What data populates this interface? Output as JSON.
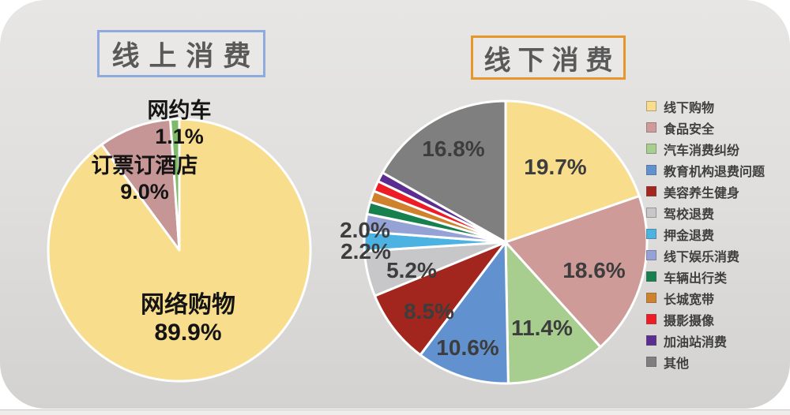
{
  "page": {
    "background_color": "#ffffff",
    "card_color": "#dededc"
  },
  "online_section": {
    "title": "线上消费",
    "title_text_color": "#595959",
    "title_border_color": "#8faadc"
  },
  "offline_section": {
    "title": "线下消费",
    "title_text_color": "#595959",
    "title_border_color": "#e6962a"
  },
  "chart_data": [
    {
      "type": "pie",
      "title": "线上消费",
      "start_angle_deg": 0,
      "direction": "clockwise",
      "slices": [
        {
          "name": "网络购物",
          "value": 89.9,
          "label": "89.9%",
          "color": "#f7dd8c"
        },
        {
          "name": "订票订酒店",
          "value": 9.0,
          "label": "9.0%",
          "color": "#c59695"
        },
        {
          "name": "网约车",
          "value": 1.1,
          "label": "1.1%",
          "color": "#7eba67"
        }
      ]
    },
    {
      "type": "pie",
      "title": "线下消费",
      "start_angle_deg": 0,
      "direction": "clockwise",
      "legend_position": "right",
      "slices": [
        {
          "name": "线下购物",
          "value": 19.7,
          "label": "19.7%",
          "color": "#f7dd8c"
        },
        {
          "name": "食品安全",
          "value": 18.6,
          "label": "18.6%",
          "color": "#cf9b99"
        },
        {
          "name": "汽车消费纠纷",
          "value": 11.4,
          "label": "11.4%",
          "color": "#a7cd8f"
        },
        {
          "name": "教育机构退费问题",
          "value": 10.6,
          "label": "10.6%",
          "color": "#6291cf"
        },
        {
          "name": "美容养生健身",
          "value": 8.5,
          "label": "8.5%",
          "color": "#a3261e"
        },
        {
          "name": "驾校退费",
          "value": 5.2,
          "label": "5.2%",
          "color": "#c7c6c8"
        },
        {
          "name": "押金退费",
          "value": 2.2,
          "label": "2.2%",
          "color": "#4cb2e2"
        },
        {
          "name": "线下娱乐消费",
          "value": 2.0,
          "label": "2.0%",
          "color": "#95a2d6"
        },
        {
          "name": "车辆出行类",
          "value": 1.4,
          "label": "",
          "color": "#16804f"
        },
        {
          "name": "长城宽带",
          "value": 1.3,
          "label": "",
          "color": "#d0812b"
        },
        {
          "name": "摄影摄像",
          "value": 1.2,
          "label": "",
          "color": "#ee1c25"
        },
        {
          "name": "加油站消费",
          "value": 1.1,
          "label": "",
          "color": "#5c2d91"
        },
        {
          "name": "其他",
          "value": 16.8,
          "label": "16.8%",
          "color": "#7f7f7f"
        }
      ]
    }
  ]
}
